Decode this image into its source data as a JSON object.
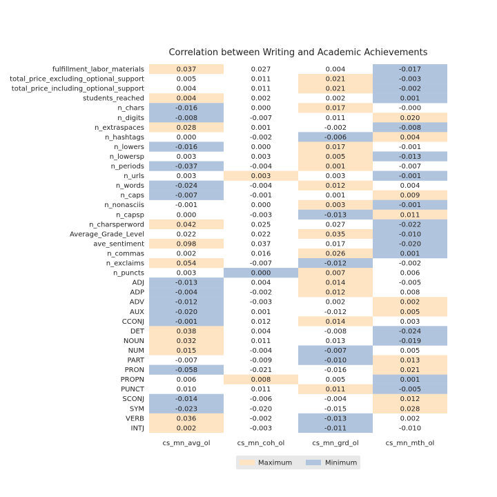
{
  "chart_data": {
    "type": "table",
    "title": "Correlation between Writing and Academic Achievements",
    "columns": [
      "cs_mn_avg_ol",
      "cs_mn_coh_ol",
      "cs_mn_grd_ol",
      "cs_mn_mth_ol"
    ],
    "colors": {
      "max": "#ffe4c4",
      "min": "#b0c4de",
      "legend_bg": "#e8e8e8"
    },
    "legend": {
      "placement": "bottom-center",
      "entries": [
        {
          "label": "Maximum",
          "key": "max"
        },
        {
          "label": "Minimum",
          "key": "min"
        }
      ]
    },
    "rows": [
      {
        "label": "fulfillment_labor_materials",
        "values": [
          "0.037",
          "0.027",
          "0.004",
          "-0.017"
        ],
        "highlight": [
          "max",
          "",
          "",
          "min"
        ]
      },
      {
        "label": "total_price_excluding_optional_support",
        "values": [
          "0.005",
          "0.011",
          "0.021",
          "-0.003"
        ],
        "highlight": [
          "",
          "",
          "max",
          "min"
        ]
      },
      {
        "label": "total_price_including_optional_support",
        "values": [
          "0.004",
          "0.011",
          "0.021",
          "-0.002"
        ],
        "highlight": [
          "",
          "",
          "max",
          "min"
        ]
      },
      {
        "label": "students_reached",
        "values": [
          "0.004",
          "0.002",
          "0.002",
          "0.001"
        ],
        "highlight": [
          "max",
          "",
          "",
          "min"
        ]
      },
      {
        "label": "n_chars",
        "values": [
          "-0.016",
          "0.000",
          "0.017",
          "-0.000"
        ],
        "highlight": [
          "min",
          "",
          "max",
          ""
        ]
      },
      {
        "label": "n_digits",
        "values": [
          "-0.008",
          "-0.007",
          "0.011",
          "0.020"
        ],
        "highlight": [
          "min",
          "",
          "",
          "max"
        ]
      },
      {
        "label": "n_extraspaces",
        "values": [
          "0.028",
          "0.001",
          "-0.002",
          "-0.008"
        ],
        "highlight": [
          "max",
          "",
          "",
          "min"
        ]
      },
      {
        "label": "n_hashtags",
        "values": [
          "0.000",
          "-0.002",
          "-0.006",
          "0.004"
        ],
        "highlight": [
          "",
          "",
          "min",
          "max"
        ]
      },
      {
        "label": "n_lowers",
        "values": [
          "-0.016",
          "0.000",
          "0.017",
          "-0.001"
        ],
        "highlight": [
          "min",
          "",
          "max",
          ""
        ]
      },
      {
        "label": "n_lowersp",
        "values": [
          "0.003",
          "0.003",
          "0.005",
          "-0.013"
        ],
        "highlight": [
          "",
          "",
          "max",
          "min"
        ]
      },
      {
        "label": "n_periods",
        "values": [
          "-0.037",
          "-0.004",
          "0.001",
          "-0.007"
        ],
        "highlight": [
          "min",
          "",
          "max",
          ""
        ]
      },
      {
        "label": "n_urls",
        "values": [
          "0.003",
          "0.003",
          "0.003",
          "-0.001"
        ],
        "highlight": [
          "",
          "max",
          "",
          "min"
        ]
      },
      {
        "label": "n_words",
        "values": [
          "-0.024",
          "-0.004",
          "0.012",
          "0.004"
        ],
        "highlight": [
          "min",
          "",
          "max",
          ""
        ]
      },
      {
        "label": "n_caps",
        "values": [
          "-0.007",
          "-0.001",
          "0.001",
          "0.009"
        ],
        "highlight": [
          "min",
          "",
          "",
          "max"
        ]
      },
      {
        "label": "n_nonasciis",
        "values": [
          "-0.001",
          "0.000",
          "0.003",
          "-0.001"
        ],
        "highlight": [
          "",
          "",
          "max",
          "min"
        ]
      },
      {
        "label": "n_capsp",
        "values": [
          "0.000",
          "-0.003",
          "-0.013",
          "0.011"
        ],
        "highlight": [
          "",
          "",
          "min",
          "max"
        ]
      },
      {
        "label": "n_charsperword",
        "values": [
          "0.042",
          "0.025",
          "0.027",
          "-0.022"
        ],
        "highlight": [
          "max",
          "",
          "",
          "min"
        ]
      },
      {
        "label": "Average_Grade_Level",
        "values": [
          "0.022",
          "0.022",
          "0.035",
          "-0.010"
        ],
        "highlight": [
          "",
          "",
          "max",
          "min"
        ]
      },
      {
        "label": "ave_sentiment",
        "values": [
          "0.098",
          "0.037",
          "0.017",
          "-0.020"
        ],
        "highlight": [
          "max",
          "",
          "",
          "min"
        ]
      },
      {
        "label": "n_commas",
        "values": [
          "0.002",
          "0.016",
          "0.026",
          "0.001"
        ],
        "highlight": [
          "",
          "",
          "max",
          "min"
        ]
      },
      {
        "label": "n_exclaims",
        "values": [
          "0.054",
          "-0.007",
          "-0.012",
          "-0.002"
        ],
        "highlight": [
          "max",
          "",
          "min",
          ""
        ]
      },
      {
        "label": "n_puncts",
        "values": [
          "0.003",
          "0.000",
          "0.007",
          "0.006"
        ],
        "highlight": [
          "",
          "min",
          "max",
          ""
        ]
      },
      {
        "label": "ADJ",
        "values": [
          "-0.013",
          "0.004",
          "0.014",
          "-0.005"
        ],
        "highlight": [
          "min",
          "",
          "max",
          ""
        ]
      },
      {
        "label": "ADP",
        "values": [
          "-0.004",
          "-0.002",
          "0.012",
          "0.008"
        ],
        "highlight": [
          "min",
          "",
          "max",
          ""
        ]
      },
      {
        "label": "ADV",
        "values": [
          "-0.012",
          "-0.003",
          "0.002",
          "0.002"
        ],
        "highlight": [
          "min",
          "",
          "",
          "max"
        ]
      },
      {
        "label": "AUX",
        "values": [
          "-0.020",
          "0.001",
          "-0.012",
          "0.005"
        ],
        "highlight": [
          "min",
          "",
          "",
          "max"
        ]
      },
      {
        "label": "CCONJ",
        "values": [
          "-0.001",
          "0.012",
          "0.014",
          "0.003"
        ],
        "highlight": [
          "min",
          "",
          "max",
          ""
        ]
      },
      {
        "label": "DET",
        "values": [
          "0.038",
          "0.004",
          "-0.008",
          "-0.024"
        ],
        "highlight": [
          "max",
          "",
          "",
          "min"
        ]
      },
      {
        "label": "NOUN",
        "values": [
          "0.032",
          "0.011",
          "0.013",
          "-0.019"
        ],
        "highlight": [
          "max",
          "",
          "",
          "min"
        ]
      },
      {
        "label": "NUM",
        "values": [
          "0.015",
          "-0.004",
          "-0.007",
          "0.005"
        ],
        "highlight": [
          "max",
          "",
          "min",
          ""
        ]
      },
      {
        "label": "PART",
        "values": [
          "-0.007",
          "-0.009",
          "-0.010",
          "0.013"
        ],
        "highlight": [
          "",
          "",
          "min",
          "max"
        ]
      },
      {
        "label": "PRON",
        "values": [
          "-0.058",
          "-0.021",
          "-0.016",
          "0.021"
        ],
        "highlight": [
          "min",
          "",
          "",
          "max"
        ]
      },
      {
        "label": "PROPN",
        "values": [
          "0.006",
          "0.008",
          "0.005",
          "0.001"
        ],
        "highlight": [
          "",
          "max",
          "",
          "min"
        ]
      },
      {
        "label": "PUNCT",
        "values": [
          "0.010",
          "0.011",
          "0.011",
          "-0.005"
        ],
        "highlight": [
          "",
          "",
          "max",
          "min"
        ]
      },
      {
        "label": "SCONJ",
        "values": [
          "-0.014",
          "-0.006",
          "-0.004",
          "0.012"
        ],
        "highlight": [
          "min",
          "",
          "",
          "max"
        ]
      },
      {
        "label": "SYM",
        "values": [
          "-0.023",
          "-0.020",
          "-0.015",
          "0.028"
        ],
        "highlight": [
          "min",
          "",
          "",
          "max"
        ]
      },
      {
        "label": "VERB",
        "values": [
          "0.036",
          "-0.002",
          "-0.013",
          "0.002"
        ],
        "highlight": [
          "max",
          "",
          "min",
          ""
        ]
      },
      {
        "label": "INTJ",
        "values": [
          "0.002",
          "-0.003",
          "-0.011",
          "-0.010"
        ],
        "highlight": [
          "max",
          "",
          "min",
          ""
        ]
      }
    ]
  }
}
